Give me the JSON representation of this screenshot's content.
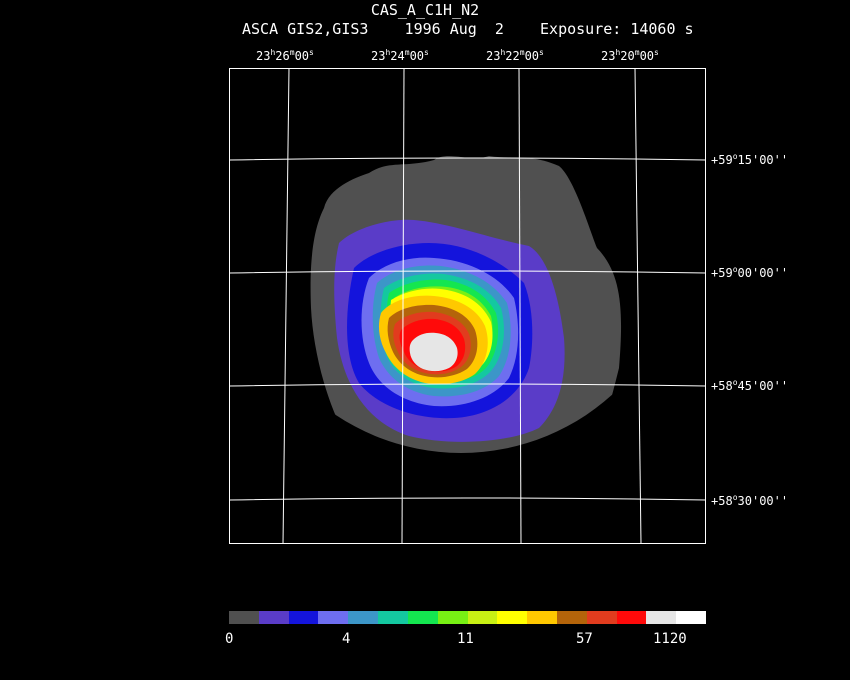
{
  "header": {
    "title": "CAS_A_C1H_N2",
    "subtitle": "ASCA GIS2,GIS3    1996 Aug  2    Exposure: 14060 s"
  },
  "ra_labels": [
    {
      "h": "23",
      "m": "26",
      "s": "00"
    },
    {
      "h": "23",
      "m": "24",
      "s": "00"
    },
    {
      "h": "23",
      "m": "22",
      "s": "00"
    },
    {
      "h": "23",
      "m": "20",
      "s": "00"
    }
  ],
  "dec_labels": [
    {
      "d": "+59",
      "m": "15",
      "s": "00"
    },
    {
      "d": "+59",
      "m": "00",
      "s": "00"
    },
    {
      "d": "+58",
      "m": "45",
      "s": "00"
    },
    {
      "d": "+58",
      "m": "30",
      "s": "00"
    }
  ],
  "colorbar": {
    "colors": [
      "#505050",
      "#5a3cc8",
      "#1414dc",
      "#6e6ef0",
      "#3c96c8",
      "#14c8a0",
      "#14e650",
      "#78f014",
      "#c8f014",
      "#ffff00",
      "#ffc800",
      "#b4640a",
      "#e13c1e",
      "#ff0a0a",
      "#e6e6e6",
      "#ffffff"
    ],
    "tick_labels": [
      "0",
      "4",
      "11",
      "57",
      "1120"
    ]
  },
  "image": {
    "source_name": "Cas A",
    "levels": [
      "#505050",
      "#5a3cc8",
      "#1414dc",
      "#6e6ef0",
      "#3c96c8",
      "#14c8a0",
      "#14e650",
      "#78f014",
      "#c8f014",
      "#ffff00",
      "#ffc800",
      "#b4640a",
      "#e13c1e",
      "#ff0a0a",
      "#e6e6e6"
    ]
  }
}
